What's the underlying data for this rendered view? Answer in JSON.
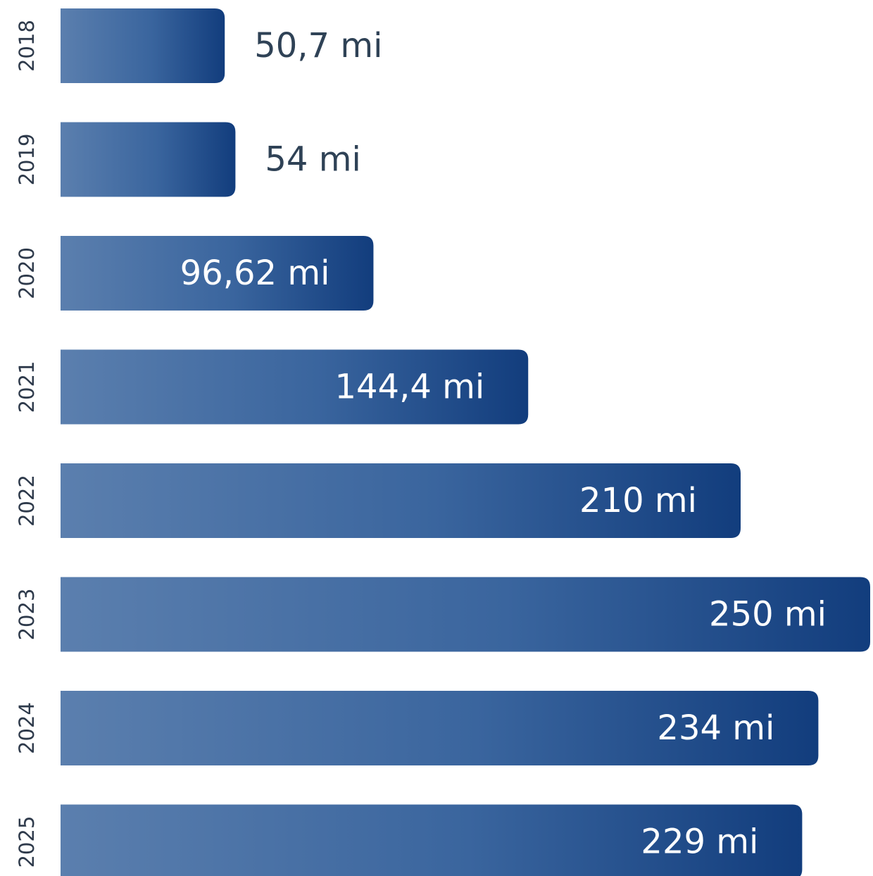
{
  "chart_data": {
    "type": "bar",
    "orientation": "horizontal",
    "categories": [
      "2018",
      "2019",
      "2020",
      "2021",
      "2022",
      "2023",
      "2024",
      "2025"
    ],
    "values": [
      50.7,
      54,
      96.62,
      144.4,
      210,
      250,
      234,
      229
    ],
    "value_labels": [
      "50,7 mi",
      "54 mi",
      "96,62 mi",
      "144,4 mi",
      "210 mi",
      "250 mi",
      "234 mi",
      "229 mi"
    ],
    "xlim": [
      0,
      250
    ],
    "grid": false,
    "legend": "none",
    "colors": {
      "bar_light": "#5b7fae",
      "bar_mid": "#3a659e",
      "bar_dark": "#123d7d",
      "label_outside": "#2f4256",
      "label_inside": "#ffffff",
      "year_label": "#2e3a4b"
    }
  }
}
